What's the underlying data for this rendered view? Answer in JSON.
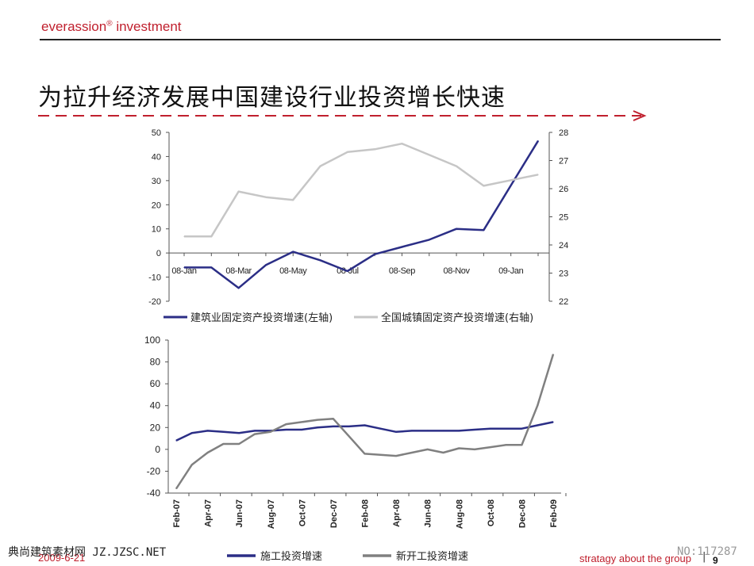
{
  "header": {
    "brand_text": "everassion",
    "brand_reg": "®",
    "brand_suffix": " investment"
  },
  "title": "为拉升经济发展中国建设行业投资增长快速",
  "footer": {
    "date": "2009-6-21",
    "tagline": "stratagy about the group",
    "separator": "|",
    "page": "9"
  },
  "watermarks": {
    "left": "典尚建筑素材网 JZ.JZSC.NET",
    "right": "NO:117287"
  },
  "colors": {
    "accent_red": "#c0202e",
    "navy": "#2b2e86",
    "light_gray": "#c6c6c6",
    "dark_gray": "#808080"
  },
  "chart_data": [
    {
      "type": "line",
      "x": [
        "08-Jan",
        "08-Feb",
        "08-Mar",
        "08-Apr",
        "08-May",
        "08-Jun",
        "08-Jul",
        "08-Aug",
        "08-Sep",
        "08-Oct",
        "08-Nov",
        "08-Dec",
        "09-Jan",
        "09-Feb"
      ],
      "x_tick_labels": [
        "08-Jan",
        "08-Mar",
        "08-May",
        "08-Jul",
        "08-Sep",
        "08-Nov",
        "09-Jan"
      ],
      "y_left_ticks": [
        "50",
        "40",
        "30",
        "20",
        "10",
        "0",
        "-10",
        "-20"
      ],
      "y_right_ticks": [
        "28",
        "27",
        "26",
        "25",
        "24",
        "23",
        "22"
      ],
      "ylim_left": [
        -20,
        50
      ],
      "ylim_right": [
        22,
        28
      ],
      "series": [
        {
          "name": "建筑业固定资产投资增速(左轴)",
          "axis": "left",
          "color": "#2b2e86",
          "values": [
            -6,
            -6,
            -14.5,
            -5,
            0.5,
            -3,
            -7.5,
            -0.5,
            2.5,
            5.5,
            10,
            9.5,
            28,
            46.5
          ]
        },
        {
          "name": "全国城镇固定资产投资增速(右轴)",
          "axis": "right",
          "color": "#c6c6c6",
          "values": [
            24.3,
            24.3,
            25.9,
            25.7,
            25.6,
            26.8,
            27.3,
            27.4,
            27.6,
            27.2,
            26.8,
            26.1,
            26.3,
            26.5
          ]
        }
      ]
    },
    {
      "type": "line",
      "x": [
        "Feb-07",
        "Mar-07",
        "Apr-07",
        "May-07",
        "Jun-07",
        "Jul-07",
        "Aug-07",
        "Sep-07",
        "Oct-07",
        "Nov-07",
        "Dec-07",
        "Jan-08",
        "Feb-08",
        "Mar-08",
        "Apr-08",
        "May-08",
        "Jun-08",
        "Jul-08",
        "Aug-08",
        "Sep-08",
        "Oct-08",
        "Nov-08",
        "Dec-08",
        "Jan-09",
        "Feb-09"
      ],
      "x_tick_labels": [
        "Feb-07",
        "Apr-07",
        "Jun-07",
        "Aug-07",
        "Oct-07",
        "Dec-07",
        "Feb-08",
        "Apr-08",
        "Jun-08",
        "Aug-08",
        "Oct-08",
        "Dec-08",
        "Feb-09"
      ],
      "y_ticks": [
        "100",
        "80",
        "60",
        "40",
        "20",
        "0",
        "-20",
        "-40"
      ],
      "ylim": [
        -40,
        100
      ],
      "series": [
        {
          "name": "施工投资增速",
          "color": "#2b2e86",
          "values": [
            8,
            15,
            17,
            16,
            15,
            17,
            17,
            18,
            18,
            20,
            21,
            21,
            22,
            19,
            16,
            17,
            17,
            17,
            17,
            18,
            19,
            19,
            19,
            22,
            25
          ]
        },
        {
          "name": "新开工投资增速",
          "color": "#808080",
          "values": [
            -36,
            -14,
            -3,
            5,
            5,
            14,
            16,
            23,
            25,
            27,
            28,
            12,
            -4,
            -5,
            -6,
            -3,
            0,
            -3,
            1,
            0,
            2,
            4,
            4,
            40,
            87
          ]
        }
      ]
    }
  ]
}
